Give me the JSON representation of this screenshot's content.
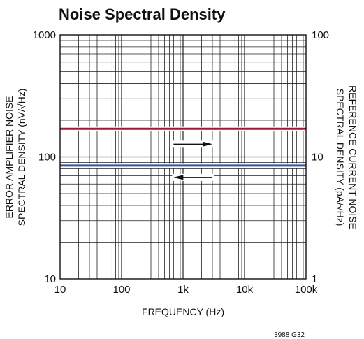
{
  "chart_data": {
    "type": "line",
    "title": "Noise Spectral Density",
    "xlabel": "FREQUENCY (Hz)",
    "ylabel_left_line1": "ERROR AMPLIFIER NOISE",
    "ylabel_left_line2": "SPECTRAL DENSITY (nV/√Hz)",
    "ylabel_right_line1": "REFERENCE CURRENT NOISE",
    "ylabel_right_line2": "SPECTRAL DENSITY (pA/√Hz)",
    "x_scale": "log",
    "y_scale": "log",
    "xlim": [
      10,
      100000
    ],
    "ylim_left": [
      10,
      1000
    ],
    "ylim_right": [
      1,
      100
    ],
    "grid": true,
    "x_ticks": [
      {
        "value": 10,
        "label": "10"
      },
      {
        "value": 100,
        "label": "100"
      },
      {
        "value": 1000,
        "label": "1k"
      },
      {
        "value": 10000,
        "label": "10k"
      },
      {
        "value": 100000,
        "label": "100k"
      }
    ],
    "y_left_ticks": [
      {
        "value": 10,
        "label": "10"
      },
      {
        "value": 100,
        "label": "100"
      },
      {
        "value": 1000,
        "label": "1000"
      }
    ],
    "y_right_ticks": [
      {
        "value": 1,
        "label": "1"
      },
      {
        "value": 10,
        "label": "10"
      },
      {
        "value": 100,
        "label": "100"
      }
    ],
    "series": [
      {
        "axis": "right",
        "color": "#9b1b3a",
        "x": [
          10,
          100000
        ],
        "y": [
          17,
          17
        ]
      },
      {
        "axis": "left",
        "color": "#3553a3",
        "x": [
          10,
          100000
        ],
        "y": [
          85,
          85
        ]
      }
    ],
    "arrows": [
      {
        "direction": "right",
        "points_to_axis": "right"
      },
      {
        "direction": "left",
        "points_to_axis": "left"
      }
    ],
    "figure_code": "3988 G32"
  }
}
